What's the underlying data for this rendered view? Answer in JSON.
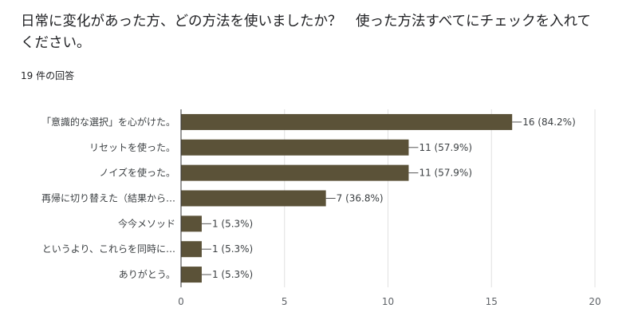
{
  "question": {
    "title": "日常に変化があった方、どの方法を使いましたか？　使った方法すべてにチェックを入れてください。",
    "response_count": "19 件の回答"
  },
  "colors": {
    "bar": "#5b5238",
    "grid": "#e0e0e0",
    "axis": "#333333"
  },
  "chart_data": {
    "type": "bar",
    "orientation": "horizontal",
    "categories": [
      "「意識的な選択」を心がけた。",
      "リセットを使った。",
      "ノイズを使った。",
      "再帰に切り替えた（結果から…",
      "今今メソッド",
      "というより、これらを同時に…",
      "ありがとう。"
    ],
    "values": [
      16,
      11,
      11,
      7,
      1,
      1,
      1
    ],
    "labels": [
      "16 (84.2%)",
      "11 (57.9%)",
      "11 (57.9%)",
      "7 (36.8%)",
      "1 (5.3%)",
      "1 (5.3%)",
      "1 (5.3%)"
    ],
    "xlim": [
      0,
      20
    ],
    "xticks": [
      0,
      5,
      10,
      15,
      20
    ],
    "grid": true
  }
}
